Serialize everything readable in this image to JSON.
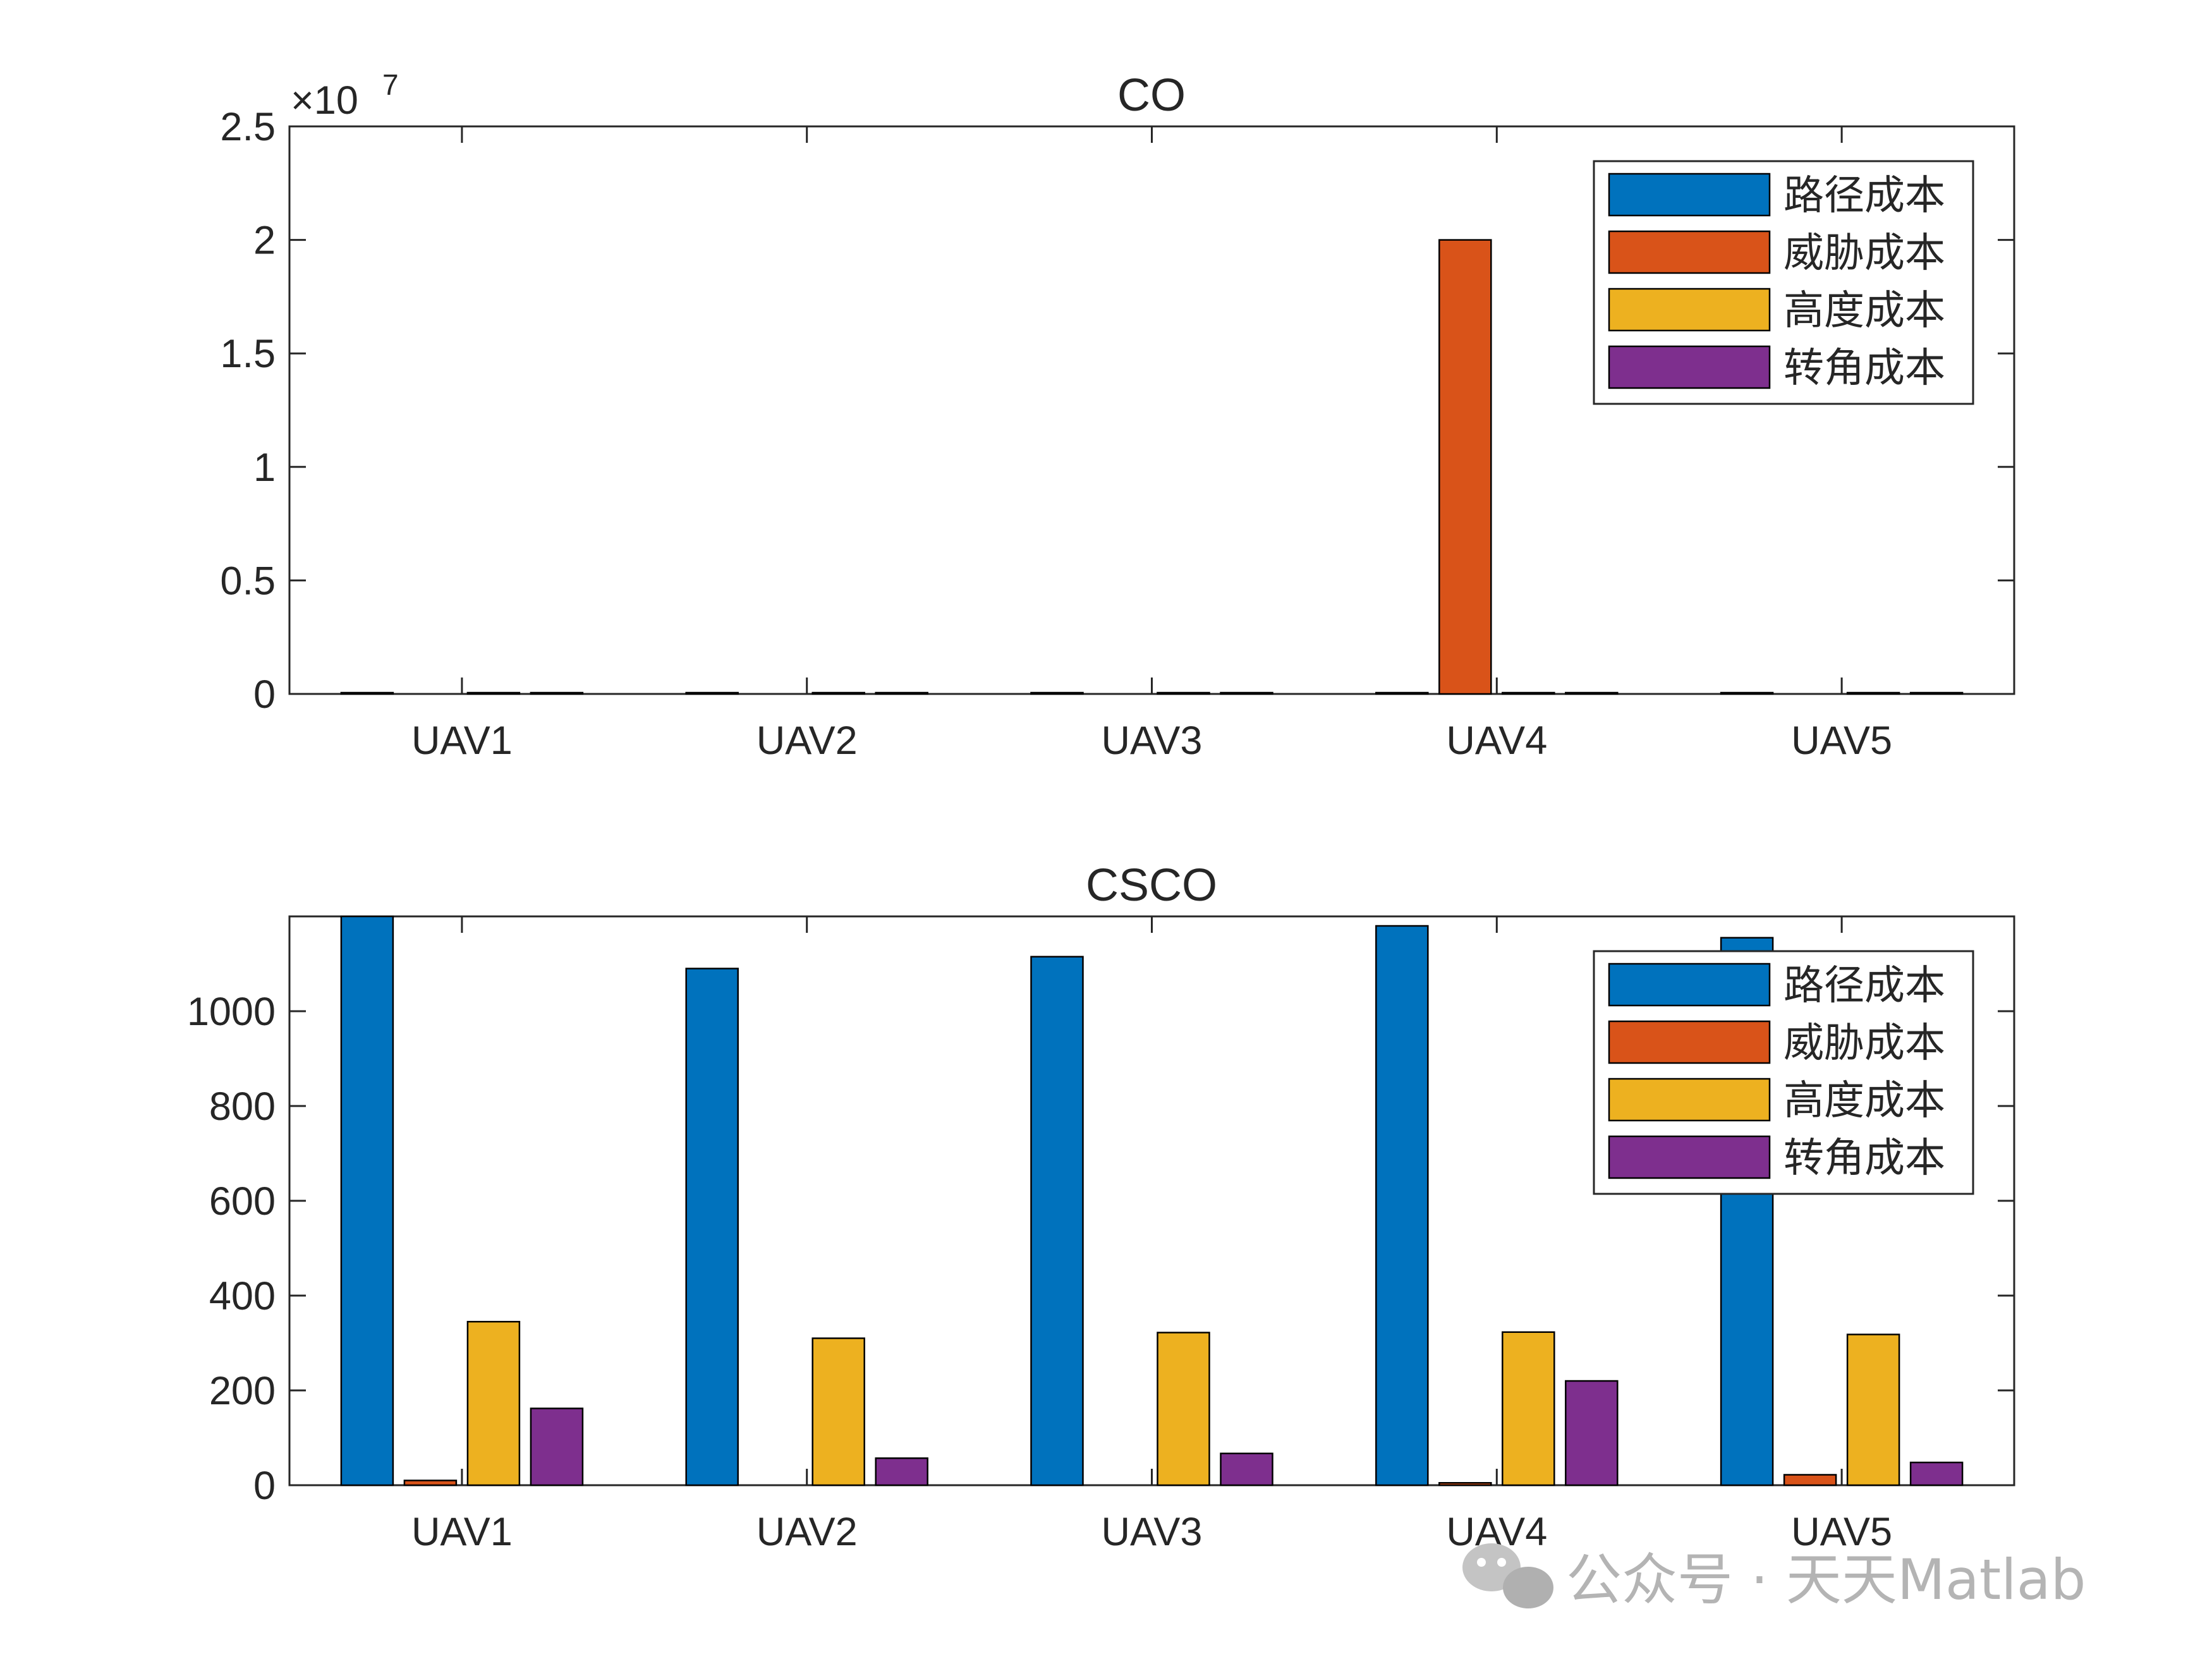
{
  "chart_data": [
    {
      "type": "bar",
      "title": "CO",
      "categories": [
        "UAV1",
        "UAV2",
        "UAV3",
        "UAV4",
        "UAV5"
      ],
      "series": [
        {
          "name": "路径成本",
          "color": "#0072BD",
          "values": [
            1150,
            1090,
            1115,
            1180,
            1160
          ]
        },
        {
          "name": "威胁成本",
          "color": "#D95319",
          "values": [
            0,
            0,
            0,
            20000000,
            0
          ]
        },
        {
          "name": "高度成本",
          "color": "#EDB120",
          "values": [
            330,
            300,
            320,
            320,
            310
          ]
        },
        {
          "name": "转角成本",
          "color": "#7E2F8E",
          "values": [
            140,
            50,
            60,
            220,
            40
          ]
        }
      ],
      "ylim": [
        0,
        25000000
      ],
      "yticks": [
        0,
        5000000,
        10000000,
        15000000,
        20000000,
        25000000
      ],
      "ytick_labels": [
        "0",
        "0.5",
        "1",
        "1.5",
        "2",
        "2.5"
      ],
      "exponent_label": "×10",
      "exponent_power": "7",
      "legend_position": "top-right"
    },
    {
      "type": "bar",
      "title": "CSCO",
      "categories": [
        "UAV1",
        "UAV2",
        "UAV3",
        "UAV4",
        "UAV5"
      ],
      "series": [
        {
          "name": "路径成本",
          "color": "#0072BD",
          "values": [
            1200,
            1090,
            1115,
            1180,
            1155
          ]
        },
        {
          "name": "威胁成本",
          "color": "#D95319",
          "values": [
            10,
            0,
            0,
            5,
            22
          ]
        },
        {
          "name": "高度成本",
          "color": "#EDB120",
          "values": [
            345,
            310,
            322,
            323,
            318
          ]
        },
        {
          "name": "转角成本",
          "color": "#7E2F8E",
          "values": [
            162,
            57,
            67,
            220,
            48
          ]
        }
      ],
      "ylim": [
        0,
        1200
      ],
      "yticks": [
        0,
        200,
        400,
        600,
        800,
        1000
      ],
      "ytick_labels": [
        "0",
        "200",
        "400",
        "600",
        "800",
        "1000"
      ],
      "legend_position": "top-right"
    }
  ],
  "watermark": {
    "text": "公众号 · 天天Matlab",
    "icon": "wechat-icon"
  }
}
